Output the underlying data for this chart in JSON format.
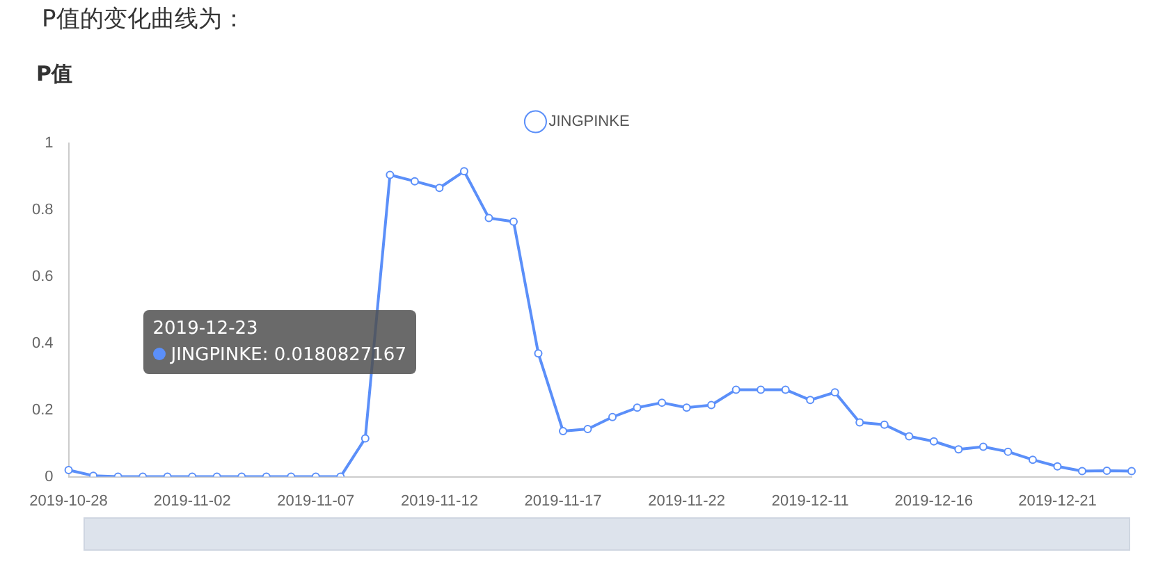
{
  "chart_data": {
    "type": "line",
    "title": "P值",
    "annotations": [
      "P值的变化曲线为：",
      "2019-12-23",
      "JINGPINKE: 0.0180827167"
    ],
    "categories": [
      "2019-10-28",
      null,
      null,
      null,
      null,
      "2019-11-02",
      null,
      null,
      null,
      null,
      "2019-11-07",
      null,
      null,
      null,
      null,
      "2019-11-12",
      null,
      null,
      null,
      null,
      "2019-11-17",
      null,
      null,
      null,
      null,
      "2019-11-22",
      null,
      null,
      null,
      null,
      "2019-12-11",
      null,
      null,
      null,
      null,
      "2019-12-16",
      null,
      null,
      null,
      null,
      "2019-12-21",
      null,
      null,
      null
    ],
    "series": [
      {
        "name": "JINGPINKE",
        "color": "#5b8ff9",
        "values": [
          0.02,
          0.003,
          0,
          0,
          0,
          0,
          0,
          0,
          0,
          0,
          0,
          0,
          0.115,
          0.905,
          0.886,
          0.866,
          0.916,
          0.776,
          0.765,
          0.37,
          0.137,
          0.143,
          0.179,
          0.207,
          0.222,
          0.207,
          0.215,
          0.261,
          0.261,
          0.261,
          0.23,
          0.253,
          0.163,
          0.156,
          0.121,
          0.106,
          0.082,
          0.09,
          0.075,
          0.051,
          0.031,
          0.017,
          0.018,
          0.017
        ]
      }
    ],
    "ylim": [
      0,
      1
    ],
    "yticks": [
      0,
      0.2,
      0.4,
      0.6,
      0.8,
      1
    ],
    "legend": "top",
    "marker": "circle",
    "line_style": "solid"
  }
}
